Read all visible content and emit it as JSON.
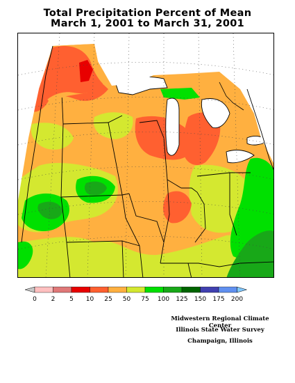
{
  "title": "Total Precipitation Percent of Mean",
  "subtitle": "March 1, 2001 to March 31, 2001",
  "legend": {
    "thresholds": [
      "0",
      "2",
      "5",
      "10",
      "25",
      "50",
      "75",
      "100",
      "125",
      "150",
      "175",
      "200"
    ],
    "colors": [
      "#c8c8c8",
      "#ffc0c0",
      "#e07878",
      "#e80000",
      "#ff6030",
      "#ffb040",
      "#d4e830",
      "#00e000",
      "#18a818",
      "#006400",
      "#4040b0",
      "#6090f0",
      "#80c8ff"
    ]
  },
  "credits": [
    "Midwestern Regional Climate Center",
    "Illinois State Water Survey",
    "Champaign, Illinois"
  ]
}
